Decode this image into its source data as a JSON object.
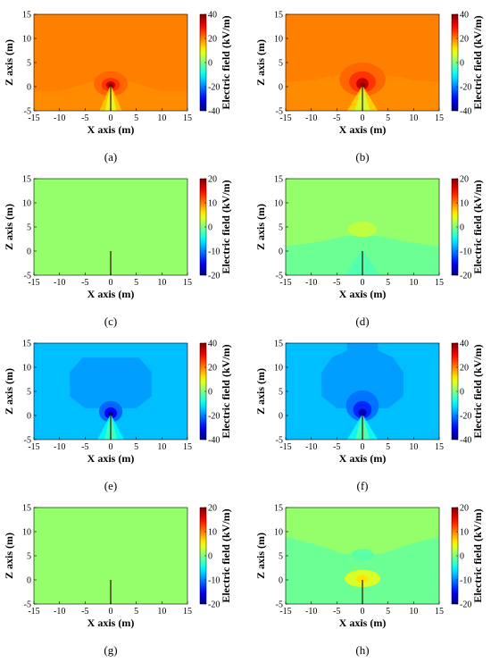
{
  "figure": {
    "panels": [
      {
        "id": "a",
        "caption": "(a)",
        "cbar_range": [
          -40,
          40
        ],
        "cbar_ticks": [
          "40",
          "20",
          "0",
          "-20",
          "-40"
        ],
        "field": "pos_tip"
      },
      {
        "id": "b",
        "caption": "(b)",
        "cbar_range": [
          -40,
          40
        ],
        "cbar_ticks": [
          "40",
          "20",
          "0",
          "-20",
          "-40"
        ],
        "field": "pos_tip_strong"
      },
      {
        "id": "c",
        "caption": "(c)",
        "cbar_range": [
          -20,
          20
        ],
        "cbar_ticks": [
          "20",
          "10",
          "0",
          "-10",
          "-20"
        ],
        "field": "uniform_zero"
      },
      {
        "id": "d",
        "caption": "(d)",
        "cbar_range": [
          -20,
          20
        ],
        "cbar_ticks": [
          "20",
          "10",
          "0",
          "-10",
          "-20"
        ],
        "field": "weak_blob"
      },
      {
        "id": "e",
        "caption": "(e)",
        "cbar_range": [
          -40,
          40
        ],
        "cbar_ticks": [
          "40",
          "20",
          "0",
          "-20",
          "-40"
        ],
        "field": "neg_tip"
      },
      {
        "id": "f",
        "caption": "(f)",
        "cbar_range": [
          -40,
          40
        ],
        "cbar_ticks": [
          "40",
          "20",
          "0",
          "-20",
          "-40"
        ],
        "field": "neg_tip_strong"
      },
      {
        "id": "g",
        "caption": "(g)",
        "cbar_range": [
          -20,
          20
        ],
        "cbar_ticks": [
          "20",
          "10",
          "0",
          "-10",
          "-20"
        ],
        "field": "uniform_zero"
      },
      {
        "id": "h",
        "caption": "(h)",
        "cbar_range": [
          -20,
          20
        ],
        "cbar_ticks": [
          "20",
          "10",
          "0",
          "-10",
          "-20"
        ],
        "field": "weak_blob_low"
      }
    ]
  },
  "chart_data": {
    "type": "heatmap",
    "xlabel": "X axis (m)",
    "ylabel": "Z axis (m)",
    "colorbar_label": "Electric field (kV/m)",
    "xlim": [
      -15,
      15
    ],
    "ylim": [
      -5,
      15
    ],
    "xticks": [
      "-15",
      "-10",
      "-5",
      "0",
      "5",
      "10",
      "15"
    ],
    "yticks": [
      "15",
      "10",
      "5",
      "0",
      "-5"
    ],
    "rod": {
      "x": 0,
      "z_bottom": -5,
      "z_top": 0
    },
    "colormap": "jet",
    "panels_background_value": {
      "a": 20,
      "b": 20,
      "c": 0,
      "d": 1,
      "e": -15,
      "f": -15,
      "g": 0,
      "h": 1
    }
  }
}
